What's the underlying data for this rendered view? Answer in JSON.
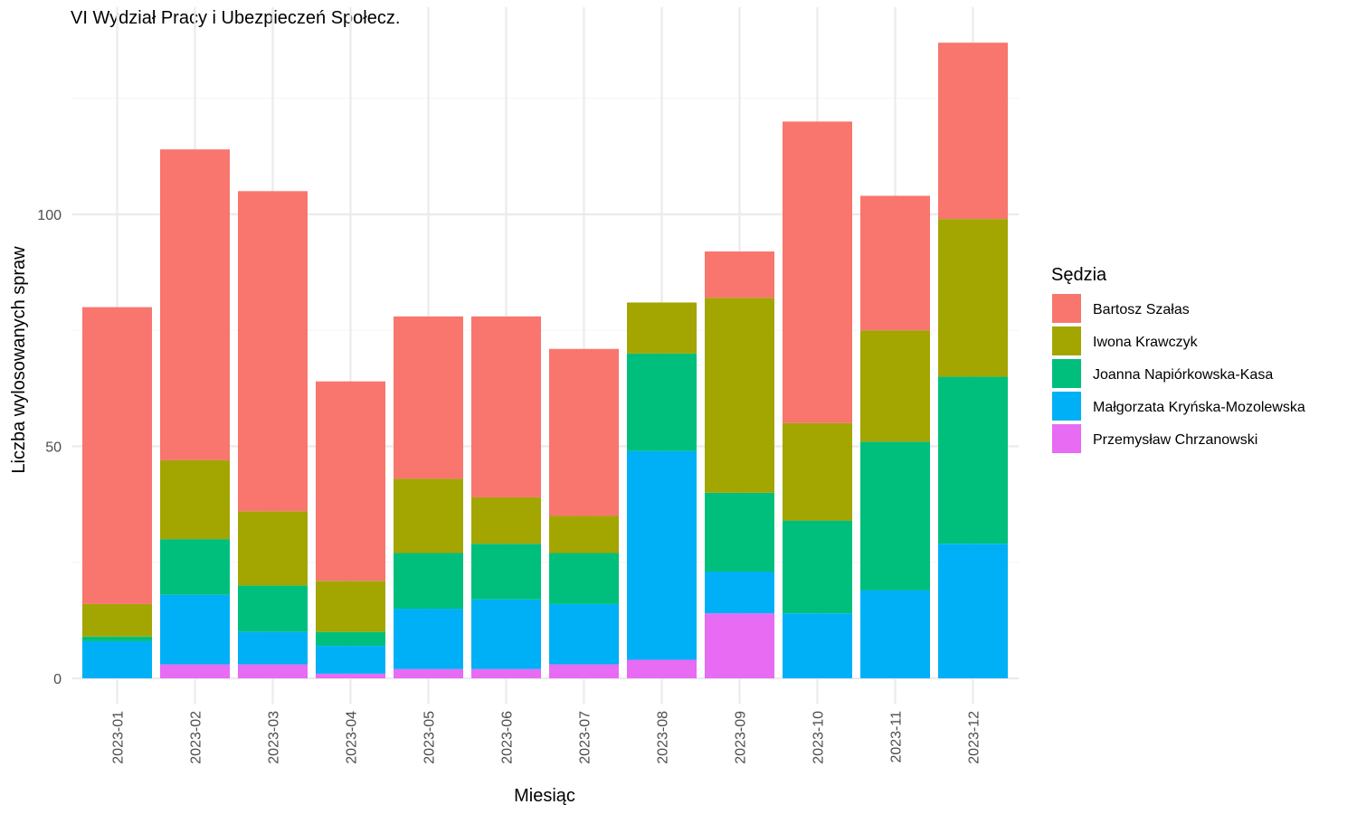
{
  "chart_data": {
    "type": "bar",
    "stacked": true,
    "title": "VI Wydział Pracy i Ubezpieczeń Społecz.",
    "xlabel": "Miesiąc",
    "ylabel": "Liczba wylosowanych spraw",
    "ylim": [
      0,
      140
    ],
    "yticks": [
      0,
      50,
      100
    ],
    "ytick_labels": [
      "0",
      "50",
      "100"
    ],
    "grid": true,
    "legend_position": "right",
    "legend_title": "Sędzia",
    "categories": [
      "2023-01",
      "2023-02",
      "2023-03",
      "2023-04",
      "2023-05",
      "2023-06",
      "2023-07",
      "2023-08",
      "2023-09",
      "2023-10",
      "2023-11",
      "2023-12"
    ],
    "series": [
      {
        "name": "Przemysław Chrzanowski",
        "color": "#E76BF3",
        "values": [
          0,
          3,
          3,
          1,
          2,
          2,
          3,
          4,
          14,
          0,
          0,
          0
        ]
      },
      {
        "name": "Małgorzata Kryńska-Mozolewska",
        "color": "#00B0F6",
        "values": [
          8,
          15,
          7,
          6,
          13,
          15,
          13,
          45,
          9,
          14,
          19,
          29
        ]
      },
      {
        "name": "Joanna Napiórkowska-Kasa",
        "color": "#00BF7D",
        "values": [
          1,
          12,
          10,
          3,
          12,
          12,
          11,
          21,
          17,
          20,
          32,
          36
        ]
      },
      {
        "name": "Iwona Krawczyk",
        "color": "#A3A500",
        "values": [
          7,
          17,
          16,
          11,
          16,
          10,
          8,
          11,
          42,
          21,
          24,
          34
        ]
      },
      {
        "name": "Bartosz Szałas",
        "color": "#F8766D",
        "values": [
          64,
          67,
          69,
          43,
          35,
          39,
          36,
          0,
          10,
          65,
          29,
          38
        ]
      }
    ],
    "legend_order": [
      "Bartosz Szałas",
      "Iwona Krawczyk",
      "Joanna Napiórkowska-Kasa",
      "Małgorzata Kryńska-Mozolewska",
      "Przemysław Chrzanowski"
    ]
  }
}
